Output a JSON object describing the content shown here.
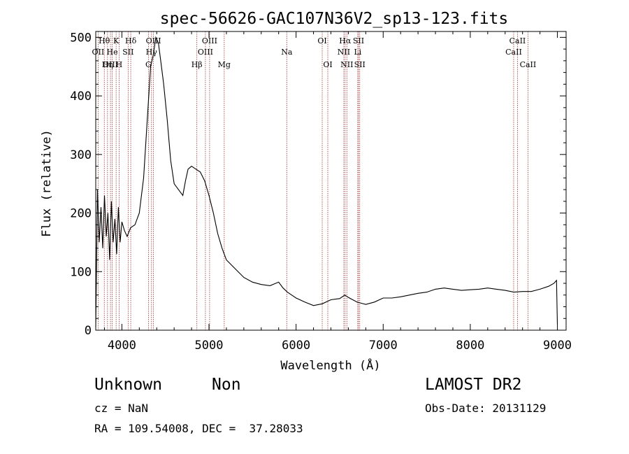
{
  "chart_data": {
    "type": "line",
    "title": "spec-56626-GAC107N36V2_sp13-123.fits",
    "xlabel": "Wavelength (Å)",
    "ylabel": "Flux (relative)",
    "xlim": [
      3700,
      9100
    ],
    "ylim": [
      0,
      510
    ],
    "xticks": [
      4000,
      5000,
      6000,
      7000,
      8000,
      9000
    ],
    "yticks": [
      0,
      100,
      200,
      300,
      400,
      500
    ],
    "grid": false,
    "series": [
      {
        "x": [
          3700,
          3720,
          3740,
          3760,
          3780,
          3800,
          3820,
          3840,
          3860,
          3880,
          3900,
          3920,
          3940,
          3960,
          3980,
          4000,
          4030,
          4060,
          4100,
          4150,
          4200,
          4250,
          4300,
          4330,
          4360,
          4390,
          4420,
          4450,
          4480,
          4520,
          4560,
          4600,
          4650,
          4700,
          4730,
          4760,
          4800,
          4850,
          4900,
          4950,
          5000,
          5050,
          5100,
          5150,
          5200,
          5300,
          5400,
          5500,
          5600,
          5700,
          5800,
          5850,
          5900,
          5950,
          6000,
          6100,
          6200,
          6300,
          6400,
          6500,
          6560,
          6600,
          6650,
          6700,
          6750,
          6800,
          6900,
          7000,
          7100,
          7200,
          7300,
          7400,
          7500,
          7600,
          7700,
          7800,
          7900,
          8000,
          8100,
          8200,
          8300,
          8400,
          8500,
          8600,
          8700,
          8800,
          8900,
          8960,
          8990,
          9000
        ],
        "y": [
          5,
          240,
          150,
          210,
          140,
          230,
          160,
          200,
          120,
          220,
          150,
          190,
          130,
          210,
          150,
          185,
          170,
          160,
          175,
          180,
          200,
          260,
          380,
          450,
          470,
          500,
          490,
          455,
          420,
          360,
          290,
          250,
          240,
          230,
          255,
          275,
          280,
          275,
          270,
          255,
          230,
          200,
          165,
          140,
          120,
          105,
          90,
          82,
          78,
          76,
          82,
          72,
          65,
          60,
          55,
          48,
          42,
          45,
          52,
          54,
          60,
          56,
          52,
          48,
          46,
          44,
          48,
          55,
          55,
          57,
          60,
          63,
          65,
          70,
          72,
          70,
          68,
          69,
          70,
          72,
          70,
          68,
          65,
          66,
          66,
          70,
          75,
          80,
          85,
          10
        ]
      }
    ],
    "line_labels": [
      {
        "label": "Hθ",
        "x": 3798,
        "row": 1
      },
      {
        "label": "OII",
        "x": 3727,
        "row": 2
      },
      {
        "label": "OIII",
        "x": 3869,
        "row": 3
      },
      {
        "label": "He",
        "x": 3889,
        "row": 2
      },
      {
        "label": "Hη",
        "x": 3835,
        "row": 3
      },
      {
        "label": "K",
        "x": 3934,
        "row": 1
      },
      {
        "label": "H",
        "x": 3968,
        "row": 3
      },
      {
        "label": "SII",
        "x": 4072,
        "row": 2
      },
      {
        "label": "Hδ",
        "x": 4102,
        "row": 1
      },
      {
        "label": "G",
        "x": 4305,
        "row": 3
      },
      {
        "label": "OIII",
        "x": 4363,
        "row": 1
      },
      {
        "label": "Hγ",
        "x": 4340,
        "row": 2
      },
      {
        "label": "Hβ",
        "x": 4861,
        "row": 3
      },
      {
        "label": "OIII",
        "x": 5007,
        "row": 1
      },
      {
        "label": "OIII",
        "x": 4959,
        "row": 2
      },
      {
        "label": "Mg",
        "x": 5175,
        "row": 3
      },
      {
        "label": "Na",
        "x": 5893,
        "row": 2
      },
      {
        "label": "OI",
        "x": 6300,
        "row": 1
      },
      {
        "label": "OI",
        "x": 6364,
        "row": 3
      },
      {
        "label": "Hα",
        "x": 6563,
        "row": 1
      },
      {
        "label": "NII",
        "x": 6548,
        "row": 2
      },
      {
        "label": "NII",
        "x": 6583,
        "row": 3
      },
      {
        "label": "SII",
        "x": 6717,
        "row": 1
      },
      {
        "label": "Li",
        "x": 6708,
        "row": 2
      },
      {
        "label": "SII",
        "x": 6731,
        "row": 3
      },
      {
        "label": "CaII",
        "x": 8542,
        "row": 1
      },
      {
        "label": "CaII",
        "x": 8498,
        "row": 2
      },
      {
        "label": "CaII",
        "x": 8662,
        "row": 3
      }
    ]
  },
  "info": {
    "class": "Unknown",
    "subclass": "Non",
    "survey": "LAMOST DR2",
    "cz": "cz = NaN",
    "obs_date": "Obs-Date: 20131129",
    "coords": "RA = 109.54008, DEC =  37.28033"
  }
}
